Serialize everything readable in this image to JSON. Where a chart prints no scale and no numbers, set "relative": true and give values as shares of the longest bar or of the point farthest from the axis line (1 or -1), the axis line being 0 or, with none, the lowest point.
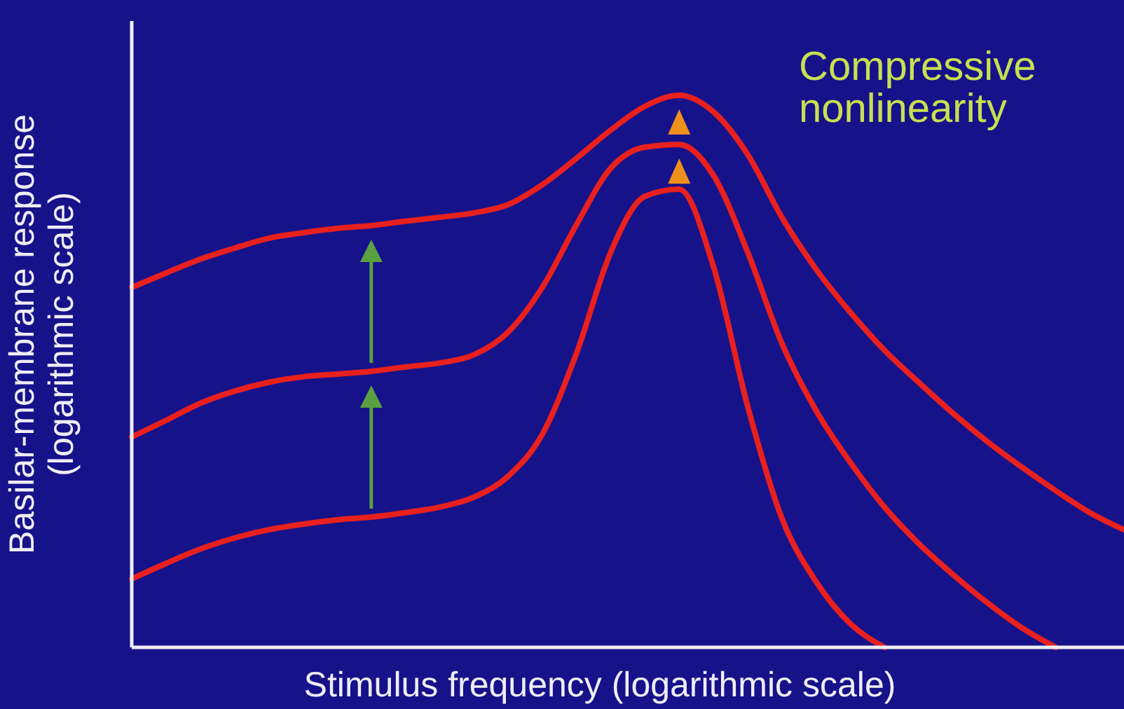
{
  "chart_data": {
    "type": "line",
    "relative": true,
    "xlabel": "Stimulus frequency (logarithmic scale)",
    "ylabel": "Basilar-membrane response\n(logarithmic scale)",
    "annotations": [
      "Compressive\nnonlinearity"
    ],
    "categories": [
      null,
      null,
      null,
      null,
      null,
      null,
      null,
      null,
      null,
      null,
      null,
      null,
      null,
      null,
      null,
      null,
      null,
      null,
      null,
      null,
      null,
      null,
      null,
      null,
      null,
      null,
      null,
      null,
      null,
      null
    ],
    "series": [
      {
        "color": "#e8201e",
        "values": [
          0.652,
          0.678,
          0.703,
          0.723,
          0.741,
          0.751,
          0.759,
          0.764,
          0.772,
          0.779,
          0.787,
          0.802,
          0.838,
          0.886,
          0.937,
          0.98,
          1,
          0.97,
          0.893,
          0.779,
          0.685,
          0.607,
          0.538,
          0.48,
          0.424,
          0.373,
          0.327,
          0.284,
          0.244,
          0.213
        ]
      },
      {
        "color": "#e8201e",
        "values": [
          0.381,
          0.411,
          0.442,
          0.464,
          0.48,
          0.49,
          0.495,
          0.5,
          0.508,
          0.515,
          0.53,
          0.571,
          0.652,
          0.766,
          0.868,
          0.906,
          0.911,
          0.855,
          0.716,
          0.551,
          0.429,
          0.335,
          0.254,
          0.188,
          0.132,
          0.081,
          0.036,
          0,
          null,
          null
        ]
      },
      {
        "color": "#e8201e",
        "values": [
          0.124,
          0.152,
          0.178,
          0.198,
          0.213,
          0.223,
          0.231,
          0.236,
          0.244,
          0.254,
          0.272,
          0.31,
          0.386,
          0.533,
          0.716,
          0.817,
          0.83,
          0.69,
          0.437,
          0.234,
          0.119,
          0.043,
          0,
          null,
          null,
          null,
          null,
          null,
          null,
          null
        ]
      }
    ],
    "marker": "none",
    "line_style": "solid"
  }
}
